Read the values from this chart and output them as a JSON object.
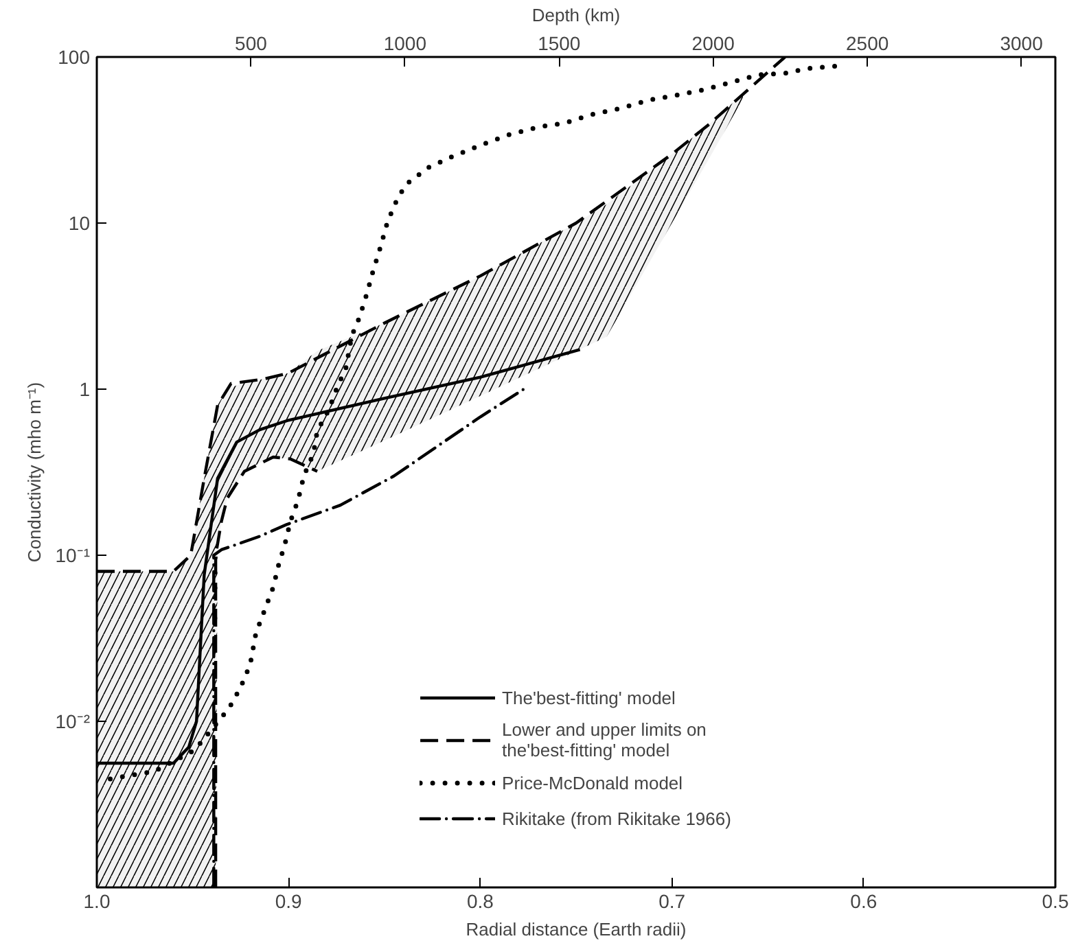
{
  "chart_data": {
    "type": "line",
    "xlabel": "Radial distance (Earth radii)",
    "ylabel": "Conductivity (mho m⁻¹)",
    "x2label": "Depth (km)",
    "log": "y",
    "grid": false,
    "legend": "bottom",
    "xlim": [
      1.0,
      0.5
    ],
    "xticks": [
      {
        "value": 1.0,
        "label": "1.0"
      },
      0.9,
      0.8,
      0.7,
      0.6,
      0.5
    ],
    "x2lim": [
      0,
      3110
    ],
    "x2ticks": [
      500,
      1000,
      1500,
      2000,
      2500,
      3000
    ],
    "ylim": [
      0.001,
      100
    ],
    "yticks": [
      100,
      10,
      1,
      {
        "value": 0.1,
        "label": "10⁻¹"
      },
      {
        "value": 0.01,
        "label": "10⁻²"
      }
    ],
    "series": [
      {
        "type": "area",
        "color": "#000000",
        "values": [
          null,
          null,
          null,
          null,
          null,
          null,
          null,
          null,
          null,
          null,
          null,
          null,
          null,
          null,
          null,
          null,
          null,
          null,
          null
        ],
        "x": [
          1.0,
          0.96,
          0.951,
          0.944,
          0.938,
          0.937,
          0.932,
          0.923,
          0.913,
          0.908,
          0.9,
          0.885,
          0.85,
          0.8,
          0.75,
          0.734,
          0.7,
          0.681,
          0.663
        ],
        "upper": [
          0.08,
          0.08,
          0.1,
          0.29,
          0.7,
          0.8,
          1.0,
          1.1,
          1.15,
          1.18,
          1.25,
          1.7,
          2.5,
          4.8,
          10,
          13,
          26,
          39,
          60
        ],
        "lower": [
          0.001,
          0.001,
          0.001,
          0.001,
          0.001,
          0.12,
          0.22,
          0.32,
          0.37,
          0.39,
          0.38,
          0.32,
          0.49,
          0.91,
          1.69,
          2.07,
          10,
          24,
          56
        ]
      },
      {
        "name": "The'best-fitting' model",
        "color": "#000000",
        "line_style": "solid",
        "x": [
          1.0,
          0.96,
          0.952,
          0.948,
          0.944,
          0.937,
          0.927,
          0.915,
          0.9,
          0.85,
          0.8,
          0.748
        ],
        "values": [
          0.0056,
          0.0056,
          0.007,
          0.01,
          0.076,
          0.29,
          0.48,
          0.57,
          0.65,
          0.88,
          1.18,
          1.73
        ]
      },
      {
        "name": "Lower and upper limits on\nthe'best-fitting' model",
        "color": "#000000",
        "line_style": "dashed",
        "x": [
          1.0,
          0.96,
          0.951,
          0.944,
          0.937,
          0.93,
          0.913,
          0.9,
          0.85,
          0.8,
          0.75,
          0.7,
          0.681,
          0.641
        ],
        "values": [
          0.08,
          0.08,
          0.1,
          0.29,
          0.8,
          1.08,
          1.15,
          1.25,
          2.5,
          4.8,
          10,
          26,
          39,
          100
        ]
      },
      {
        "color": "#000000",
        "line_style": "dashed",
        "x": [
          0.938,
          0.938,
          0.935,
          0.932,
          0.923,
          0.908,
          0.899,
          0.885
        ],
        "values": [
          0.001,
          0.1,
          0.16,
          0.22,
          0.32,
          0.39,
          0.38,
          0.32
        ]
      },
      {
        "name": "Price-McDonald model",
        "color": "#000000",
        "line_style": "dotted",
        "x": [
          0.993,
          0.97,
          0.949,
          0.931,
          0.925,
          0.92,
          0.917,
          0.913,
          0.908,
          0.905,
          0.902,
          0.899,
          0.895,
          0.892,
          0.887,
          0.885,
          0.879,
          0.875,
          0.87,
          0.867,
          0.863,
          0.859,
          0.856,
          0.852,
          0.849,
          0.845,
          0.839,
          0.827,
          0.815,
          0.798,
          0.785,
          0.769,
          0.756,
          0.742,
          0.727,
          0.712,
          0.697,
          0.682,
          0.668,
          0.655,
          0.64,
          0.63,
          0.615
        ],
        "values": [
          0.0045,
          0.005,
          0.0067,
          0.012,
          0.016,
          0.022,
          0.034,
          0.045,
          0.064,
          0.089,
          0.115,
          0.16,
          0.215,
          0.3,
          0.41,
          0.56,
          0.75,
          1.0,
          1.35,
          2.1,
          2.7,
          3.8,
          5.1,
          7.2,
          9.6,
          12.7,
          17,
          21.6,
          25,
          30,
          34,
          38,
          40,
          45,
          49,
          55,
          59,
          64,
          71,
          78,
          80,
          85,
          88
        ]
      },
      {
        "name": "Rikitake (from Rikitake 1966)",
        "color": "#000000",
        "line_style": "dashdot",
        "x": [
          0.939,
          0.939,
          0.935,
          0.93,
          0.915,
          0.901,
          0.873,
          0.845,
          0.8,
          0.775
        ],
        "values": [
          0.001,
          0.1,
          0.108,
          0.113,
          0.13,
          0.153,
          0.2,
          0.3,
          0.68,
          1.04
        ]
      }
    ]
  }
}
